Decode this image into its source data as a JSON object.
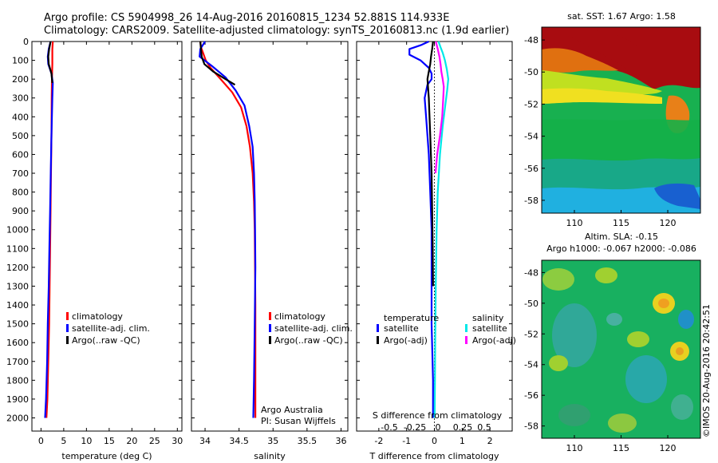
{
  "header": {
    "line1": "Argo profile: CS 5904998_26 14-Aug-2016 20160815_1234 52.881S 114.933E",
    "line2": "Climatology: CARS2009. Satellite-adjusted climatology: synTS_20160813.nc (1.9d earlier)"
  },
  "chart_data": [
    {
      "type": "line",
      "xlabel": "temperature (deg C)",
      "ylabel": "",
      "xlim": [
        -2,
        31
      ],
      "ylim": [
        2070,
        0
      ],
      "xticks": [
        0,
        5,
        10,
        15,
        20,
        25,
        30
      ],
      "yticks": [
        0,
        100,
        200,
        300,
        400,
        500,
        600,
        700,
        800,
        900,
        1000,
        1100,
        1200,
        1300,
        1400,
        1500,
        1600,
        1700,
        1800,
        1900,
        2000
      ],
      "legend": [
        "climatology",
        "satellite-adj. clim.",
        "Argo(..raw -QC)"
      ],
      "series": [
        {
          "name": "climatology",
          "color": "#ff0000",
          "x": [
            2.6,
            2.5,
            2.5,
            2.5,
            2.4,
            2.35,
            2.3,
            2.2,
            2.1,
            2.0,
            1.9,
            1.8,
            1.6,
            1.4,
            1.2
          ],
          "y": [
            0,
            40,
            80,
            120,
            200,
            300,
            500,
            700,
            900,
            1100,
            1300,
            1500,
            1700,
            1900,
            2000
          ]
        },
        {
          "name": "satellite-adj. clim.",
          "color": "#0000ff",
          "x": [
            2.1,
            1.7,
            1.5,
            1.6,
            2.3,
            2.6,
            2.5,
            2.3,
            2.15,
            2.0,
            1.85,
            1.7,
            1.5,
            1.35,
            1.1,
            0.9
          ],
          "y": [
            0,
            40,
            80,
            120,
            170,
            220,
            300,
            500,
            700,
            900,
            1100,
            1300,
            1500,
            1700,
            1900,
            2000
          ]
        },
        {
          "name": "Argo(..raw -QC)",
          "color": "#000000",
          "x": [
            2.1,
            1.8,
            1.6,
            1.7,
            2.3,
            2.5
          ],
          "y": [
            0,
            40,
            80,
            120,
            170,
            220
          ]
        }
      ]
    },
    {
      "type": "line",
      "xlabel": "salinity",
      "xlim": [
        33.8,
        36.1
      ],
      "ylim": [
        2070,
        0
      ],
      "xticks": [
        34,
        34.5,
        35,
        35.5,
        36
      ],
      "legend": [
        "climatology",
        "satellite-adj. clim.",
        "Argo(..raw -QC)"
      ],
      "annotation": [
        "Argo Australia",
        "PI: Susan Wijffels"
      ],
      "series": [
        {
          "name": "climatology",
          "color": "#ff0000",
          "x": [
            33.93,
            33.94,
            33.97,
            34.01,
            34.08,
            34.23,
            34.4,
            34.53,
            34.61,
            34.66,
            34.7,
            34.72,
            34.73,
            34.735,
            34.74,
            34.74,
            34.74,
            34.74
          ],
          "y": [
            0,
            30,
            60,
            100,
            140,
            200,
            270,
            350,
            450,
            560,
            700,
            850,
            1000,
            1200,
            1400,
            1600,
            1800,
            2000
          ]
        },
        {
          "name": "satellite-adj. clim.",
          "color": "#0000ff",
          "x": [
            34.0,
            33.93,
            33.92,
            34.1,
            34.3,
            34.45,
            34.58,
            34.65,
            34.7,
            34.72,
            34.73,
            34.735,
            34.74,
            34.73,
            34.72,
            34.71
          ],
          "y": [
            0,
            40,
            80,
            130,
            190,
            260,
            340,
            450,
            560,
            700,
            850,
            1000,
            1200,
            1500,
            1800,
            2000
          ]
        },
        {
          "name": "Argo(..raw -QC)",
          "color": "#000000",
          "x": [
            33.93,
            33.94,
            33.95,
            33.99,
            34.12,
            34.3,
            34.44
          ],
          "y": [
            0,
            40,
            80,
            120,
            160,
            200,
            230
          ]
        }
      ]
    },
    {
      "type": "line",
      "xlabel": "T difference from climatology",
      "top_label": "S difference from climatology",
      "xlim": [
        -2.8,
        2.8
      ],
      "ylim": [
        2070,
        0
      ],
      "xticks": [
        -2,
        -1,
        0,
        1,
        2
      ],
      "top_xticks": [
        "-0.5",
        "-0.25",
        "0",
        "0.25",
        "0.5"
      ],
      "legend_groups": {
        "temperature": [
          "satellite",
          "Argo(-adj)"
        ],
        "salinity": [
          "satellite",
          "Argo(-adj)"
        ]
      },
      "legend": [
        "temperature",
        "salinity"
      ],
      "series": [
        {
          "name": "satellite",
          "group": "temperature",
          "color": "#0000ff",
          "x": [
            -0.2,
            -0.5,
            -0.9,
            -0.9,
            -0.5,
            -0.2,
            -0.1,
            -0.1,
            -0.25,
            -0.35,
            -0.3,
            -0.2,
            -0.15,
            -0.1,
            -0.1,
            -0.1,
            -0.05,
            -0.05
          ],
          "y": [
            0,
            20,
            40,
            70,
            100,
            140,
            170,
            200,
            230,
            300,
            400,
            600,
            800,
            1000,
            1200,
            1500,
            1800,
            2000
          ]
        },
        {
          "name": "Argo(-adj)",
          "group": "temperature",
          "color": "#000000",
          "x": [
            -0.05,
            -0.08,
            -0.12,
            -0.15,
            -0.2,
            -0.25,
            -0.2,
            -0.15,
            -0.1,
            -0.08,
            -0.06,
            -0.05
          ],
          "y": [
            0,
            40,
            80,
            120,
            160,
            200,
            300,
            500,
            700,
            900,
            1100,
            1300
          ]
        },
        {
          "name": "satellite",
          "group": "salinity",
          "color": "#00e8e8",
          "x": [
            0.15,
            0.22,
            0.3,
            0.38,
            0.45,
            0.5,
            0.46,
            0.4,
            0.3,
            0.2,
            0.12,
            0.08,
            0.05,
            0.03,
            0.02,
            0.01
          ],
          "y": [
            0,
            30,
            60,
            100,
            150,
            200,
            260,
            330,
            450,
            600,
            800,
            1000,
            1300,
            1600,
            1800,
            2000
          ]
        },
        {
          "name": "Argo(-adj)",
          "group": "salinity",
          "color": "#ff00ff",
          "x": [
            0.05,
            0.12,
            0.18,
            0.22,
            0.25,
            0.3,
            0.34,
            0.32,
            0.28,
            0.2,
            0.1,
            0.04
          ],
          "y": [
            0,
            40,
            80,
            120,
            160,
            200,
            240,
            300,
            400,
            500,
            600,
            700
          ]
        }
      ]
    },
    {
      "type": "heatmap",
      "title": "sat. SST: 1.67 Argo: 1.58",
      "xlim": [
        106.5,
        123.5
      ],
      "ylim": [
        -58.8,
        -47.2
      ],
      "xticks": [
        110,
        115,
        120
      ],
      "yticks": [
        -48,
        -50,
        -52,
        -54,
        -56,
        -58
      ]
    },
    {
      "type": "heatmap",
      "title": "Altim. SLA: -0.15",
      "subtitle": "Argo h1000: -0.067 h2000: -0.086",
      "xlim": [
        106.5,
        123.5
      ],
      "ylim": [
        -58.8,
        -47.2
      ],
      "xticks": [
        110,
        115,
        120
      ],
      "yticks": [
        -48,
        -50,
        -52,
        -54,
        -56,
        -58
      ]
    }
  ],
  "footer": {
    "credit": "©IMOS 20-Aug-2016 20:42:51"
  }
}
